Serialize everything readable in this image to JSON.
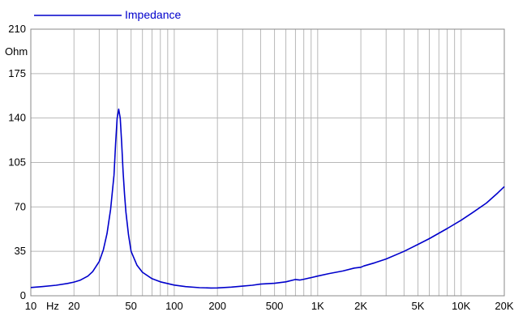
{
  "chart_data": {
    "type": "line",
    "title": "",
    "xlabel": "Hz",
    "ylabel": "Ohm",
    "x_scale": "log",
    "xlim": [
      10,
      20000
    ],
    "ylim": [
      0,
      210
    ],
    "grid": true,
    "legend_position": "top-left",
    "x_tick_labels": [
      {
        "value": 10,
        "label": "10"
      },
      {
        "value": 20,
        "label": "20"
      },
      {
        "value": 50,
        "label": "50"
      },
      {
        "value": 100,
        "label": "100"
      },
      {
        "value": 200,
        "label": "200"
      },
      {
        "value": 500,
        "label": "500"
      },
      {
        "value": 1000,
        "label": "1K"
      },
      {
        "value": 2000,
        "label": "2K"
      },
      {
        "value": 5000,
        "label": "5K"
      },
      {
        "value": 10000,
        "label": "10K"
      },
      {
        "value": 20000,
        "label": "20K"
      }
    ],
    "y_tick_labels": [
      {
        "value": 0,
        "label": "0"
      },
      {
        "value": 35,
        "label": "35"
      },
      {
        "value": 70,
        "label": "70"
      },
      {
        "value": 105,
        "label": "105"
      },
      {
        "value": 140,
        "label": "140"
      },
      {
        "value": 175,
        "label": "175"
      },
      {
        "value": 210,
        "label": "210"
      }
    ],
    "series": [
      {
        "name": "Impedance",
        "color": "#0000cc",
        "x": [
          10,
          12,
          15,
          18,
          20,
          22,
          25,
          27,
          30,
          32,
          34,
          36,
          38,
          39,
          40,
          41,
          42,
          43,
          44,
          45,
          46,
          48,
          50,
          55,
          60,
          70,
          80,
          100,
          120,
          150,
          180,
          200,
          250,
          300,
          350,
          400,
          500,
          600,
          700,
          750,
          800,
          900,
          1000,
          1200,
          1500,
          1800,
          2000,
          2100,
          2500,
          3000,
          4000,
          5000,
          6000,
          8000,
          10000,
          12000,
          15000,
          18000,
          20000
        ],
        "y": [
          6.5,
          7.2,
          8.3,
          9.7,
          10.8,
          12.2,
          15.5,
          19,
          27,
          36,
          49,
          68,
          95,
          120,
          140,
          147,
          140,
          120,
          98,
          80,
          66,
          48,
          35,
          24,
          18.5,
          13.5,
          11,
          8.4,
          7.2,
          6.4,
          6.1,
          6.2,
          6.8,
          7.6,
          8.3,
          9.2,
          9.8,
          11,
          12.8,
          12.4,
          13,
          14.3,
          15.5,
          17.5,
          19.5,
          21.8,
          22.5,
          23.5,
          26,
          29,
          35,
          40.5,
          45,
          53,
          59.5,
          65.5,
          73,
          81,
          86
        ]
      }
    ]
  }
}
